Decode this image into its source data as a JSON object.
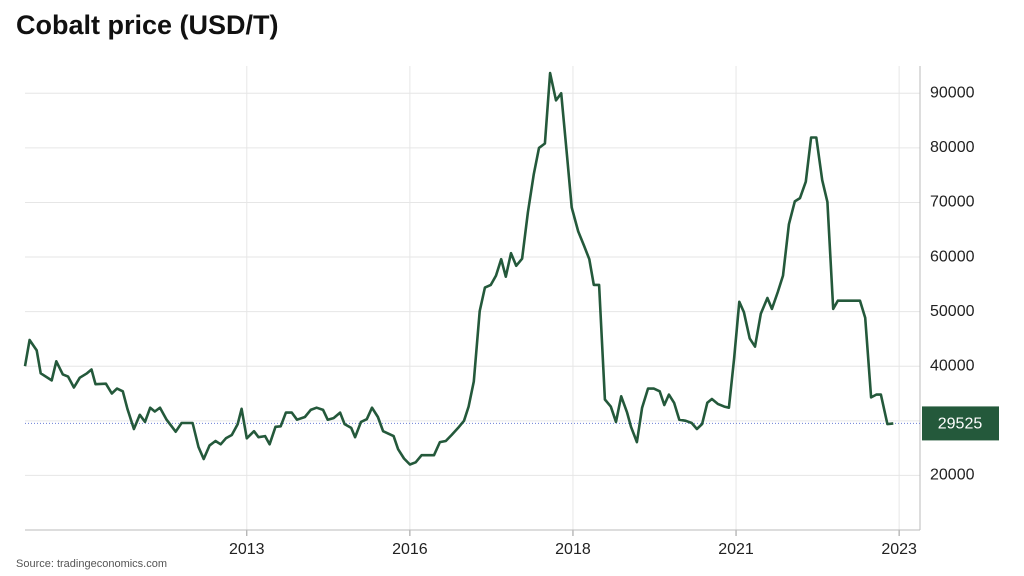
{
  "chart_data": {
    "type": "line",
    "title": "Cobalt price (USD/T)",
    "source": "Source: tradingeconomics.com",
    "color": "#24593b",
    "grid": true,
    "xlim": [
      2010.1,
      2023.82
    ],
    "xticks": [
      {
        "value": 2013.5,
        "label": "2013"
      },
      {
        "value": 2016.0,
        "label": "2016"
      },
      {
        "value": 2018.5,
        "label": "2018"
      },
      {
        "value": 2021.0,
        "label": "2021"
      },
      {
        "value": 2023.5,
        "label": "2023"
      }
    ],
    "ylim": [
      10000,
      95000
    ],
    "yticks": [
      20000,
      30000,
      40000,
      50000,
      60000,
      70000,
      80000,
      90000
    ],
    "x": [
      2010.1,
      2010.17,
      2010.28,
      2010.34,
      2010.51,
      2010.58,
      2010.68,
      2010.76,
      2010.85,
      2010.94,
      2011.05,
      2011.12,
      2011.18,
      2011.34,
      2011.43,
      2011.51,
      2011.6,
      2011.67,
      2011.77,
      2011.86,
      2011.94,
      2012.02,
      2012.09,
      2012.17,
      2012.27,
      2012.41,
      2012.5,
      2012.67,
      2012.76,
      2012.84,
      2012.93,
      2013.02,
      2013.1,
      2013.18,
      2013.27,
      2013.36,
      2013.42,
      2013.5,
      2013.61,
      2013.68,
      2013.78,
      2013.85,
      2013.94,
      2014.02,
      2014.1,
      2014.19,
      2014.27,
      2014.39,
      2014.48,
      2014.57,
      2014.67,
      2014.74,
      2014.83,
      2014.93,
      2015.0,
      2015.1,
      2015.16,
      2015.25,
      2015.34,
      2015.42,
      2015.51,
      2015.59,
      2015.68,
      2015.75,
      2015.82,
      2015.91,
      2016.0,
      2016.09,
      2016.18,
      2016.28,
      2016.37,
      2016.46,
      2016.55,
      2016.64,
      2016.74,
      2016.83,
      2016.9,
      2016.98,
      2017.07,
      2017.15,
      2017.24,
      2017.32,
      2017.4,
      2017.47,
      2017.55,
      2017.63,
      2017.72,
      2017.81,
      2017.9,
      2017.98,
      2018.07,
      2018.15,
      2018.24,
      2018.32,
      2018.41,
      2018.48,
      2018.58,
      2018.67,
      2018.75,
      2018.82,
      2018.9,
      2018.99,
      2019.08,
      2019.16,
      2019.24,
      2019.33,
      2019.39,
      2019.48,
      2019.56,
      2019.65,
      2019.74,
      2019.83,
      2019.9,
      2019.97,
      2020.05,
      2020.13,
      2020.23,
      2020.32,
      2020.4,
      2020.48,
      2020.56,
      2020.63,
      2020.72,
      2020.82,
      2020.89,
      2020.97,
      2021.05,
      2021.12,
      2021.21,
      2021.29,
      2021.38,
      2021.48,
      2021.55,
      2021.64,
      2021.72,
      2021.81,
      2021.9,
      2021.98,
      2022.07,
      2022.15,
      2022.23,
      2022.32,
      2022.4,
      2022.49,
      2022.56,
      2022.9,
      2022.98,
      2023.07,
      2023.15,
      2023.22,
      2023.32,
      2023.41
    ],
    "values": [
      40000,
      44800,
      42900,
      38700,
      37400,
      40900,
      38500,
      38100,
      36100,
      37900,
      38700,
      39400,
      36700,
      36800,
      35000,
      35900,
      35400,
      32200,
      28500,
      31100,
      29800,
      32400,
      31700,
      32400,
      30200,
      28000,
      29600,
      29600,
      25200,
      23000,
      25500,
      26300,
      25700,
      26800,
      27400,
      29400,
      32200,
      26800,
      28100,
      27000,
      27200,
      25700,
      28900,
      29000,
      31500,
      31500,
      30200,
      30700,
      32000,
      32400,
      32000,
      30200,
      30500,
      31500,
      29400,
      28700,
      27000,
      29800,
      30300,
      32400,
      30700,
      28100,
      27600,
      27200,
      24800,
      23100,
      22000,
      22400,
      23700,
      23700,
      23700,
      26100,
      26300,
      27400,
      28700,
      30000,
      32600,
      37200,
      50100,
      54400,
      54900,
      56600,
      59600,
      56400,
      60700,
      58400,
      59700,
      68200,
      75200,
      80000,
      80800,
      93700,
      88700,
      90000,
      78400,
      69100,
      64700,
      62100,
      59600,
      54900,
      54900,
      33900,
      32600,
      29800,
      34500,
      31500,
      28900,
      26100,
      32400,
      35900,
      35900,
      35400,
      32900,
      34800,
      33300,
      30200,
      30000,
      29600,
      28500,
      29400,
      33300,
      34000,
      33100,
      32600,
      32400,
      41400,
      51800,
      49900,
      45100,
      43600,
      49600,
      52500,
      50500,
      53600,
      56600,
      66000,
      70200,
      70800,
      73800,
      81900,
      81900,
      74100,
      70100,
      50500,
      52000,
      52000,
      48900,
      34300,
      34800,
      34800,
      29400,
      29525
    ]
  }
}
